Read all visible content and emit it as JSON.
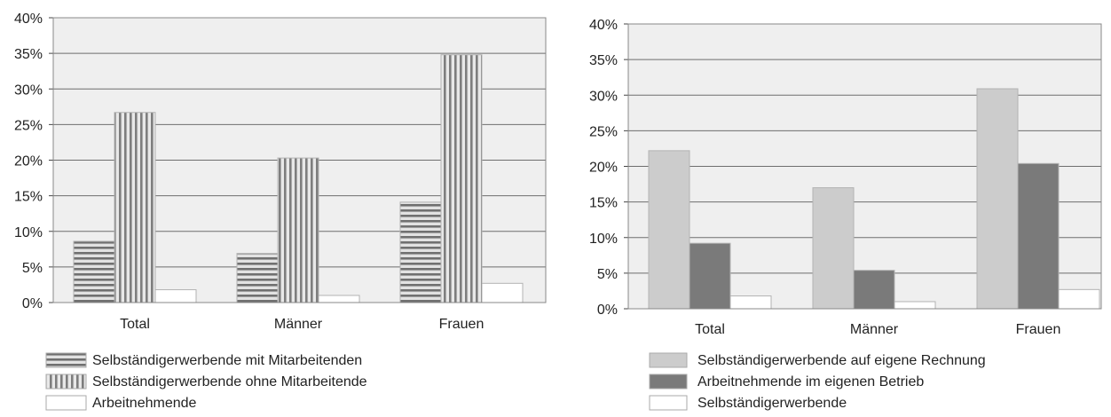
{
  "chart_data": [
    {
      "type": "bar",
      "title": "",
      "xlabel": "",
      "ylabel": "",
      "ylim": [
        0,
        0.4
      ],
      "ytick_labels": [
        "0%",
        "5%",
        "10%",
        "15%",
        "20%",
        "25%",
        "30%",
        "35%",
        "40%"
      ],
      "grid": true,
      "legend_position": "bottom",
      "categories": [
        "Total",
        "Männer",
        "Frauen"
      ],
      "series": [
        {
          "name": "Selbständigerwerbende mit Mitarbeitenden",
          "values": [
            0.086,
            0.069,
            0.141
          ],
          "pattern": "horizontal-stripes",
          "color": "#7a7a7a"
        },
        {
          "name": "Selbständigerwerbende ohne Mitarbeitende",
          "values": [
            0.267,
            0.203,
            0.348
          ],
          "pattern": "vertical-stripes",
          "color": "#8a8a8a"
        },
        {
          "name": "Arbeitnehmende",
          "values": [
            0.018,
            0.01,
            0.027
          ],
          "pattern": "none",
          "color": "#ffffff"
        }
      ]
    },
    {
      "type": "bar",
      "title": "",
      "xlabel": "",
      "ylabel": "",
      "ylim": [
        0,
        0.4
      ],
      "ytick_labels": [
        "0%",
        "5%",
        "10%",
        "15%",
        "20%",
        "25%",
        "30%",
        "35%",
        "40%"
      ],
      "grid": true,
      "legend_position": "bottom",
      "categories": [
        "Total",
        "Männer",
        "Frauen"
      ],
      "series": [
        {
          "name": "Selbständigerwerbende auf eigene Rechnung",
          "values": [
            0.222,
            0.17,
            0.309
          ],
          "pattern": "none",
          "color": "#cccccc"
        },
        {
          "name": "Arbeitnehmende im eigenen Betrieb",
          "values": [
            0.092,
            0.054,
            0.204
          ],
          "pattern": "none",
          "color": "#7a7a7a"
        },
        {
          "name": "Selbständigerwerbende",
          "values": [
            0.018,
            0.01,
            0.027
          ],
          "pattern": "none",
          "color": "#ffffff"
        }
      ]
    }
  ]
}
